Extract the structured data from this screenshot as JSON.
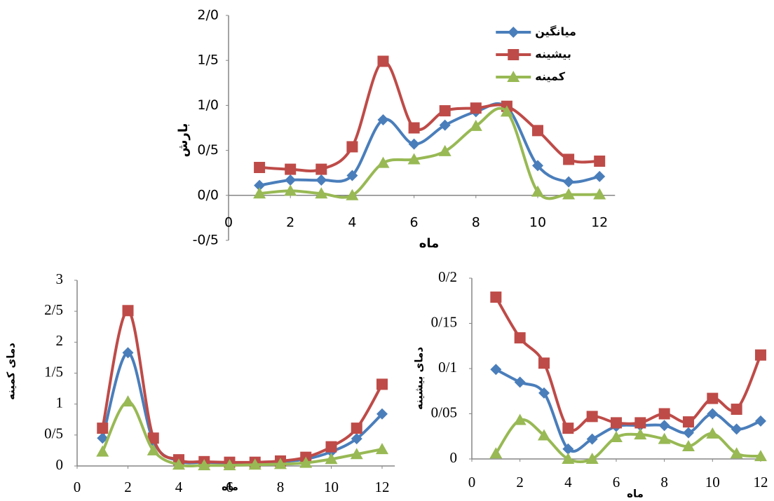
{
  "chart_data": [
    {
      "type": "line",
      "x_label": "ماه",
      "y_label": "بارش",
      "legend": "top-right",
      "x": [
        1,
        2,
        3,
        4,
        5,
        6,
        7,
        8,
        9,
        10,
        11,
        12
      ],
      "xlim": [
        0,
        12.5
      ],
      "xticks": [
        0,
        2,
        4,
        6,
        8,
        10,
        12
      ],
      "ylim": [
        -0.5,
        2.0
      ],
      "yticks": [
        {
          "value": -0.5,
          "label": "-0/5"
        },
        {
          "value": 0,
          "label": "0/0"
        },
        {
          "value": 0.5,
          "label": "0/5"
        },
        {
          "value": 1.0,
          "label": "1/0"
        },
        {
          "value": 1.5,
          "label": "1/5"
        },
        {
          "value": 2.0,
          "label": "2/0"
        }
      ],
      "series": [
        {
          "name": "میانگین",
          "color": "#4a7ebb",
          "marker": "diamond",
          "values": [
            0.11,
            0.17,
            0.17,
            0.22,
            0.84,
            0.57,
            0.78,
            0.93,
            0.98,
            0.33,
            0.15,
            0.21
          ]
        },
        {
          "name": "بیشینه",
          "color": "#be4b48",
          "marker": "square",
          "values": [
            0.31,
            0.29,
            0.29,
            0.54,
            1.49,
            0.75,
            0.94,
            0.97,
            0.99,
            0.72,
            0.4,
            0.38
          ]
        },
        {
          "name": "کمینه",
          "color": "#98b954",
          "marker": "triangle",
          "values": [
            0.02,
            0.05,
            0.02,
            0.0,
            0.36,
            0.4,
            0.49,
            0.77,
            0.93,
            0.04,
            0.01,
            0.01
          ]
        }
      ]
    },
    {
      "type": "line",
      "x_label": "ماه",
      "y_label": "دمای کمینه",
      "x": [
        1,
        2,
        3,
        4,
        5,
        6,
        7,
        8,
        9,
        10,
        11,
        12
      ],
      "xlim": [
        0,
        12.5
      ],
      "xticks": [
        0,
        2,
        4,
        6,
        8,
        10,
        12
      ],
      "ylim": [
        0,
        3
      ],
      "yticks": [
        0,
        {
          "value": 0.5,
          "label": "0/5"
        },
        1,
        {
          "value": 1.5,
          "label": "1/5"
        },
        2,
        {
          "value": 2.5,
          "label": "2/5"
        },
        3
      ],
      "series": [
        {
          "color": "#4a7ebb",
          "marker": "diamond",
          "values": [
            0.45,
            1.83,
            0.4,
            0.08,
            0.06,
            0.05,
            0.05,
            0.07,
            0.11,
            0.23,
            0.44,
            0.84
          ]
        },
        {
          "color": "#be4b48",
          "marker": "square",
          "values": [
            0.61,
            2.51,
            0.45,
            0.1,
            0.07,
            0.06,
            0.06,
            0.08,
            0.14,
            0.31,
            0.61,
            1.32
          ]
        },
        {
          "color": "#98b954",
          "marker": "triangle",
          "values": [
            0.23,
            1.04,
            0.25,
            0.02,
            0.01,
            0.01,
            0.02,
            0.03,
            0.05,
            0.11,
            0.19,
            0.27
          ]
        }
      ]
    },
    {
      "type": "line",
      "x_label": "ماه",
      "y_label": "دمای بیشینه",
      "x": [
        1,
        2,
        3,
        4,
        5,
        6,
        7,
        8,
        9,
        10,
        11,
        12
      ],
      "xlim": [
        0,
        12.2
      ],
      "xticks": [
        0,
        2,
        4,
        6,
        8,
        10,
        12
      ],
      "ylim": [
        0,
        0.2
      ],
      "yticks": [
        0,
        {
          "value": 0.05,
          "label": "0/05"
        },
        {
          "value": 0.1,
          "label": "0/1"
        },
        {
          "value": 0.15,
          "label": "0/15"
        },
        {
          "value": 0.2,
          "label": "0/2"
        }
      ],
      "series": [
        {
          "color": "#4a7ebb",
          "marker": "diamond",
          "values": [
            0.099,
            0.085,
            0.073,
            0.011,
            0.022,
            0.036,
            0.037,
            0.037,
            0.029,
            0.05,
            0.033,
            0.042
          ]
        },
        {
          "color": "#be4b48",
          "marker": "square",
          "values": [
            0.179,
            0.134,
            0.106,
            0.034,
            0.047,
            0.04,
            0.04,
            0.05,
            0.041,
            0.067,
            0.055,
            0.115
          ]
        },
        {
          "color": "#98b954",
          "marker": "triangle",
          "values": [
            0.006,
            0.043,
            0.026,
            0.0,
            0.0,
            0.024,
            0.027,
            0.022,
            0.014,
            0.028,
            0.006,
            0.003
          ]
        }
      ]
    }
  ]
}
